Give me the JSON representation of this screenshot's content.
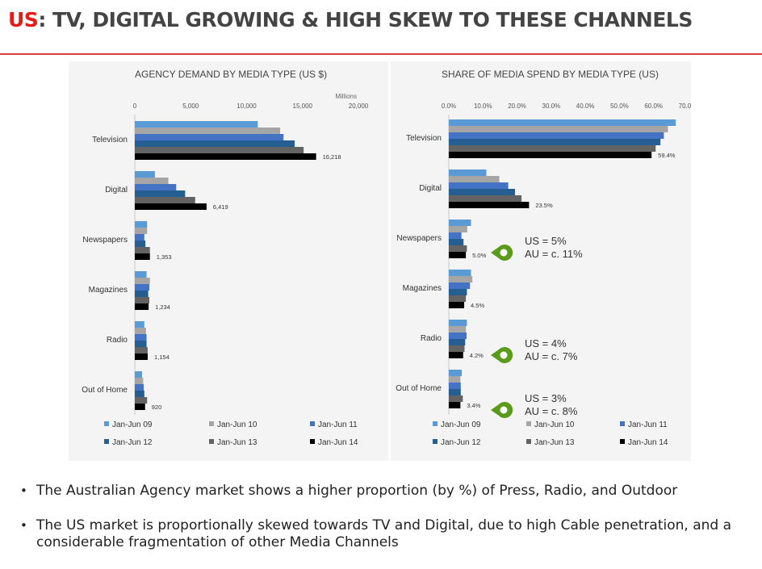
{
  "title": {
    "accent": "US",
    "rest": ": TV, DIGITAL GROWING & HIGH SKEW TO THESE CHANNELS"
  },
  "colors": {
    "Jan-Jun 09": "#5b9bd5",
    "Jan-Jun 10": "#a5a5a5",
    "Jan-Jun 11": "#4472c4",
    "Jan-Jun 12": "#255e91",
    "Jan-Jun 13": "#636363",
    "Jan-Jun 14": "#000000",
    "callout": "#5b9b1c",
    "accent": "#e41b17"
  },
  "chart_data": [
    {
      "type": "bar",
      "orientation": "horizontal",
      "title": "AGENCY DEMAND BY MEDIA TYPE (US $)",
      "unit_label": "Millions",
      "xlim": [
        0,
        20000
      ],
      "x_ticks": [
        "0",
        "5,000",
        "10,000",
        "15,000",
        "20,000"
      ],
      "categories": [
        "Television",
        "Digital",
        "Newspapers",
        "Magazines",
        "Radio",
        "Out of Home"
      ],
      "series": [
        {
          "name": "Jan-Jun 09",
          "values": [
            11000,
            1800,
            1100,
            1050,
            850,
            650
          ]
        },
        {
          "name": "Jan-Jun 10",
          "values": [
            13000,
            3000,
            1100,
            1350,
            1000,
            750
          ]
        },
        {
          "name": "Jan-Jun 11",
          "values": [
            13300,
            3700,
            850,
            1300,
            1050,
            800
          ]
        },
        {
          "name": "Jan-Jun 12",
          "values": [
            14300,
            4500,
            950,
            1200,
            1050,
            850
          ]
        },
        {
          "name": "Jan-Jun 13",
          "values": [
            15100,
            5400,
            1350,
            1300,
            1150,
            1100
          ]
        },
        {
          "name": "Jan-Jun 14",
          "values": [
            16218,
            6419,
            1353,
            1234,
            1154,
            920
          ]
        }
      ],
      "data_labels": [
        "16,218",
        "6,419",
        "1,353",
        "1,234",
        "1,154",
        "920"
      ],
      "legend": "bottom"
    },
    {
      "type": "bar",
      "orientation": "horizontal",
      "title": "SHARE OF MEDIA SPEND BY MEDIA TYPE (US)",
      "xlim": [
        0,
        70
      ],
      "x_ticks": [
        "0.0%",
        "10.0%",
        "20.0%",
        "30.0%",
        "40.0%",
        "50.0%",
        "60.0%",
        "70.0%"
      ],
      "categories": [
        "Television",
        "Digital",
        "Newspapers",
        "Magazines",
        "Radio",
        "Out of Home"
      ],
      "series": [
        {
          "name": "Jan-Jun 09",
          "values": [
            66.5,
            11.0,
            6.5,
            6.5,
            5.3,
            3.8
          ]
        },
        {
          "name": "Jan-Jun 10",
          "values": [
            64.2,
            14.8,
            5.4,
            6.9,
            5.0,
            3.4
          ]
        },
        {
          "name": "Jan-Jun 11",
          "values": [
            63.0,
            17.4,
            3.7,
            6.2,
            5.2,
            3.5
          ]
        },
        {
          "name": "Jan-Jun 12",
          "values": [
            62.0,
            19.4,
            4.3,
            5.3,
            4.8,
            3.5
          ]
        },
        {
          "name": "Jan-Jun 13",
          "values": [
            60.6,
            21.3,
            5.3,
            5.0,
            4.6,
            4.1
          ]
        },
        {
          "name": "Jan-Jun 14",
          "values": [
            59.4,
            23.5,
            5.0,
            4.5,
            4.2,
            3.4
          ]
        }
      ],
      "data_labels": [
        "59.4%",
        "23.5%",
        "5.0%",
        "4.5%",
        "4.2%",
        "3.4%"
      ],
      "legend": "bottom",
      "annotations": [
        {
          "category": "Newspapers",
          "lines": [
            "US = 5%",
            "AU = c. 11%"
          ]
        },
        {
          "category": "Radio",
          "lines": [
            "US = 4%",
            "AU = c. 7%"
          ]
        },
        {
          "category": "Out of Home",
          "lines": [
            "US = 3%",
            "AU = c. 8%"
          ]
        }
      ]
    }
  ],
  "bullets": [
    "The Australian Agency market shows a higher proportion (by %) of Press, Radio, and Outdoor",
    "The US market is proportionally skewed towards TV and Digital, due to high Cable penetration, and a considerable fragmentation of other Media Channels"
  ]
}
